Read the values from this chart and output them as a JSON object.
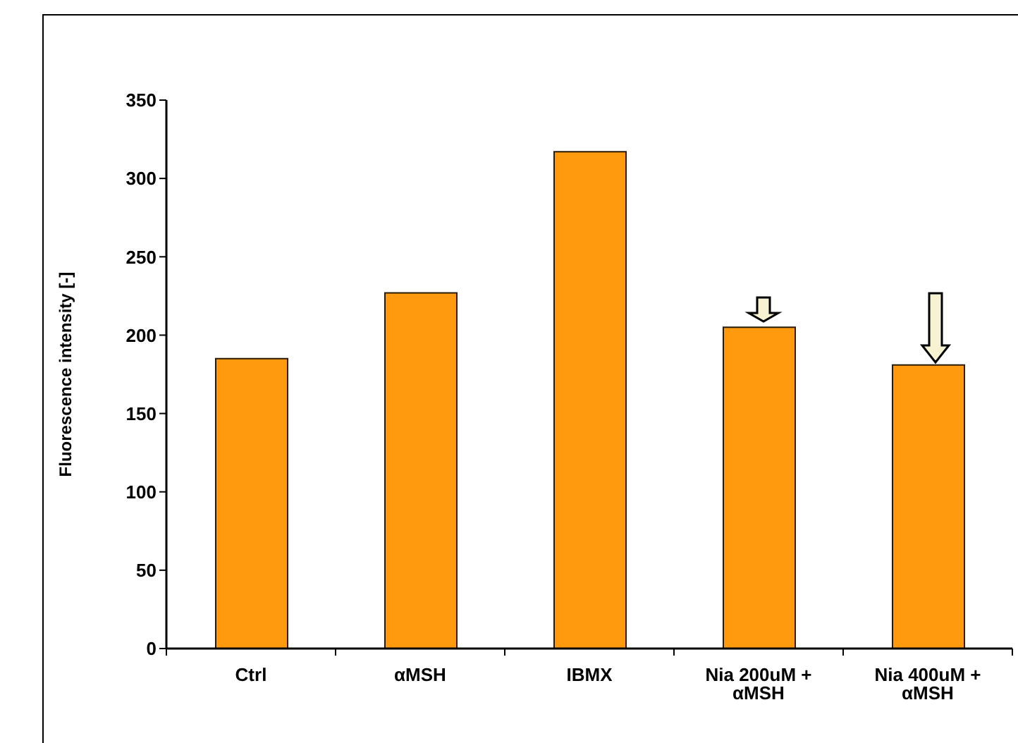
{
  "chart_data": {
    "type": "bar",
    "ylabel": "Fluorescence intensity [-]",
    "categories": [
      "Ctrl",
      "αMSH",
      "IBMX",
      "Nia 200uM + αMSH",
      "Nia 400uM + αMSH"
    ],
    "values": [
      185,
      227,
      317,
      205,
      181
    ],
    "color": "#ff9a0e",
    "ylim": [
      0,
      350
    ],
    "yticks": [
      0,
      50,
      100,
      150,
      200,
      250,
      300,
      350
    ]
  }
}
